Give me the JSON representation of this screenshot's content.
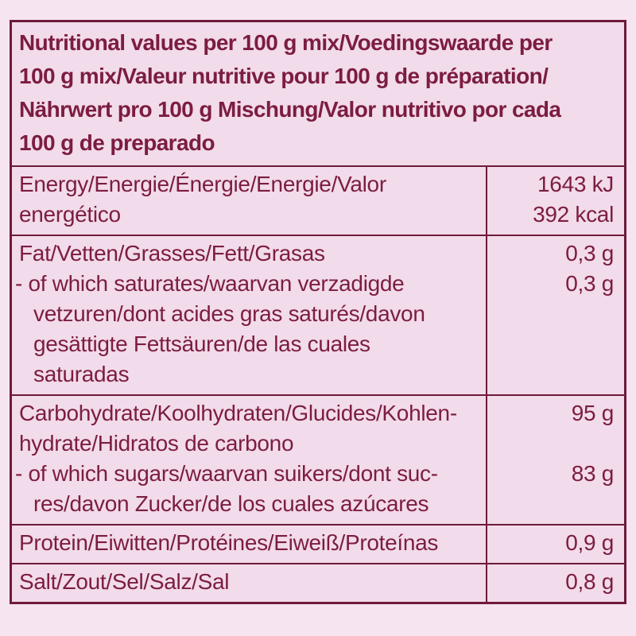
{
  "colors": {
    "page_bg": "#f6e4f1",
    "cell_bg": "#f2dbea",
    "text": "#7c1c43",
    "border": "#6e1a3c"
  },
  "table": {
    "header_lines": [
      "Nutritional values per 100 g mix/Voedingswaarde per",
      "100 g mix/Valeur nutritive pour 100 g de préparation/",
      "Nährwert pro 100 g Mischung/Valor nutritivo por cada",
      "100 g de preparado"
    ],
    "rows": [
      {
        "name": "energy",
        "lines": [
          {
            "text": "Energy/Energie/Énergie/Energie/Valor",
            "indent": "main"
          },
          {
            "text": "energético",
            "indent": "main"
          }
        ],
        "values": [
          {
            "text": "1643 kJ",
            "line": 0
          },
          {
            "text": "392 kcal",
            "line": 1
          }
        ]
      },
      {
        "name": "fat",
        "lines": [
          {
            "text": "Fat/Vetten/Grasses/Fett/Grasas",
            "indent": "main"
          },
          {
            "text": "- of which saturates/waarvan verzadigde",
            "indent": "sub"
          },
          {
            "text": "vetzuren/dont acides gras saturés/davon",
            "indent": "cont"
          },
          {
            "text": "gesättigte Fettsäuren/de las cuales",
            "indent": "cont"
          },
          {
            "text": "saturadas",
            "indent": "cont"
          }
        ],
        "values": [
          {
            "text": "0,3 g",
            "line": 0
          },
          {
            "text": "0,3 g",
            "line": 1
          }
        ]
      },
      {
        "name": "carbohydrate",
        "lines": [
          {
            "text": "Carbohydrate/Koolhydraten/Glucides/Kohlen-",
            "indent": "main"
          },
          {
            "text": "hydrate/Hidratos de carbono",
            "indent": "main"
          },
          {
            "text": "- of which sugars/waarvan suikers/dont suc-",
            "indent": "sub"
          },
          {
            "text": "res/davon Zucker/de los cuales azúcares",
            "indent": "cont"
          }
        ],
        "values": [
          {
            "text": "95 g",
            "line": 0
          },
          {
            "text": "83 g",
            "line": 2
          }
        ]
      },
      {
        "name": "protein",
        "lines": [
          {
            "text": "Protein/Eiwitten/Protéines/Eiweiß/Proteínas",
            "indent": "main"
          }
        ],
        "values": [
          {
            "text": "0,9 g",
            "line": 0
          }
        ]
      },
      {
        "name": "salt",
        "lines": [
          {
            "text": "Salt/Zout/Sel/Salz/Sal",
            "indent": "main"
          }
        ],
        "values": [
          {
            "text": "0,8 g",
            "line": 0
          }
        ]
      }
    ]
  }
}
